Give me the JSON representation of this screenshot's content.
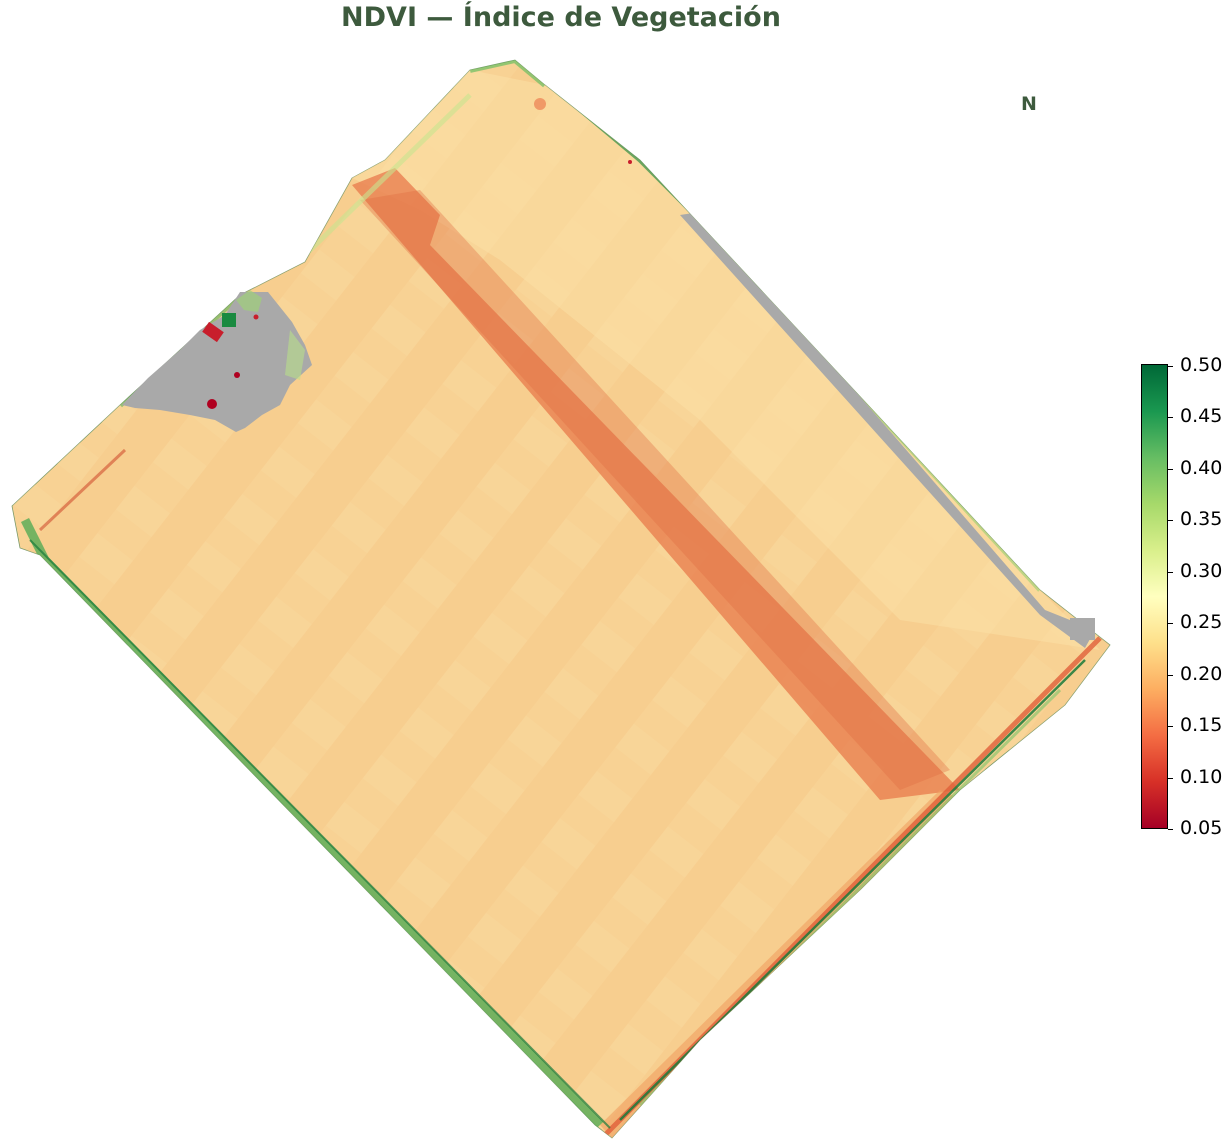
{
  "title": "NDVI — Índice de Vegetación",
  "north_label": "N",
  "colorbar": {
    "colormap": "RdYlGn",
    "min": 0.05,
    "max": 0.5,
    "tick_labels": [
      "0.05",
      "0.10",
      "0.15",
      "0.20",
      "0.25",
      "0.30",
      "0.35",
      "0.40",
      "0.45",
      "0.50"
    ]
  },
  "colors": {
    "title_color": "#3d5a3d",
    "nodata_color": "#a9a9a9",
    "field_base": "#f8cf8c",
    "low_ndvi": "#e8794b",
    "high_ndvi": "#1a9850"
  }
}
